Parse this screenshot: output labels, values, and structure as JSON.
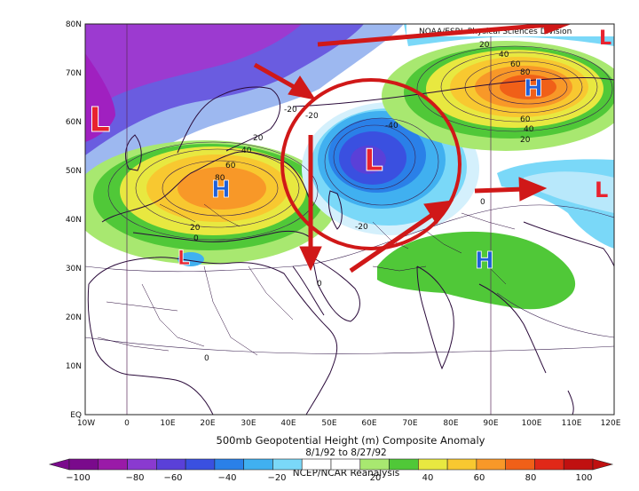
{
  "map": {
    "source_label": "NOAA/ESRL Physical Sciences Division",
    "lat_labels": [
      "80N",
      "70N",
      "60N",
      "50N",
      "40N",
      "30N",
      "20N",
      "10N",
      "EQ"
    ],
    "lon_labels": [
      "10W",
      "0",
      "10E",
      "20E",
      "30E",
      "40E",
      "50E",
      "60E",
      "70E",
      "80E",
      "90E",
      "100E",
      "110E",
      "120E"
    ],
    "title": "500mb Geopotential Height (m) Composite Anomaly",
    "date_range": "8/1/92 to 8/27/92",
    "credit": "NCEP/NCAR Reanalysis",
    "contour_labels": [
      "-20",
      "-20",
      "-40",
      "-20",
      "20",
      "40",
      "60",
      "80",
      "20",
      "20",
      "40",
      "60",
      "80",
      "60",
      "40",
      "20",
      "0",
      "0",
      "0",
      "0"
    ],
    "pressure_centers": [
      {
        "type": "low",
        "text": "L",
        "color": "#e8232f"
      },
      {
        "type": "low",
        "text": "L",
        "color": "#e8232f"
      },
      {
        "type": "low",
        "text": "L",
        "color": "#e8232f"
      },
      {
        "type": "low",
        "text": "L",
        "color": "#e8232f"
      },
      {
        "type": "low",
        "text": "L",
        "color": "#e8232f"
      },
      {
        "type": "high",
        "text": "H",
        "color": "#2060d8"
      },
      {
        "type": "high",
        "text": "H",
        "color": "#2060d8"
      },
      {
        "type": "high",
        "text": "H",
        "color": "#2060d8"
      }
    ],
    "annotation_color": "#d01818"
  },
  "colorbar": {
    "tick_labels": [
      "−100",
      "−80",
      "−60",
      "−40",
      "−20",
      "20",
      "40",
      "60",
      "80",
      "100"
    ],
    "colors": [
      "#7a0a8c",
      "#9a1aa8",
      "#8a3ad0",
      "#5a40d8",
      "#3a50e0",
      "#2a80e8",
      "#40b0f0",
      "#7ad8f8",
      "#ffffff",
      "#ffffff",
      "#a8e870",
      "#50c838",
      "#e8e840",
      "#f8c830",
      "#f89828",
      "#f06018",
      "#e02818",
      "#c01010"
    ]
  }
}
